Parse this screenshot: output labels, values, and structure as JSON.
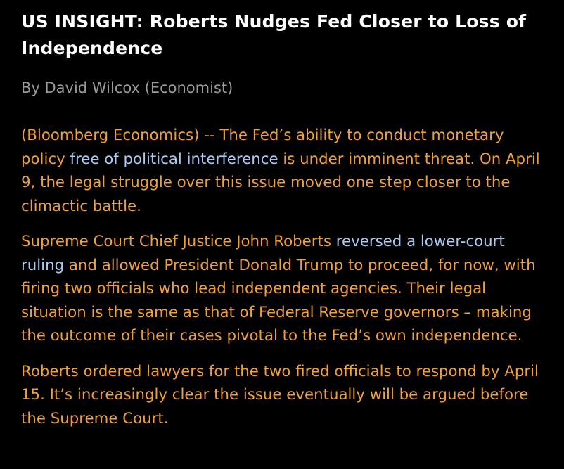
{
  "header": {
    "title": "US INSIGHT: Roberts Nudges Fed Closer to Loss of Independence",
    "byline": "By David Wilcox (Economist)"
  },
  "paragraphs": [
    [
      "(Bloomberg Economics) -- The Fed’s ability to conduct monetary policy ",
      {
        "link": "free of political interference"
      },
      " is under imminent threat. On April 9, the legal struggle over this issue moved one step closer to the climactic battle."
    ],
    [
      "Supreme Court Chief Justice John Roberts ",
      {
        "link": "reversed a lower-court ruling"
      },
      " and allowed President Donald Trump to proceed, for now, with firing two officials who lead independent agencies. Their legal situation is the same as that of Federal Reserve governors – making the outcome of their cases pivotal to the Fed’s own independence."
    ],
    [
      "Roberts ordered lawyers for the two fired officials to respond by April 15. It’s increasingly clear the issue eventually will be argued before the Supreme Court."
    ]
  ]
}
